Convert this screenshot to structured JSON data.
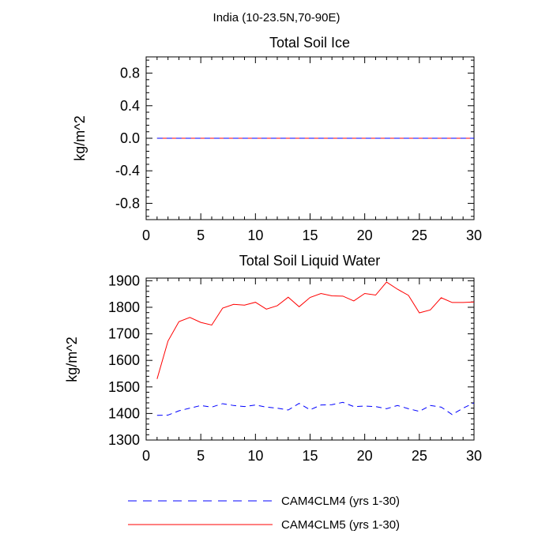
{
  "main_title": "India (10-23.5N,70-90E)",
  "colors": {
    "clm4": "#0000ff",
    "clm5": "#ff0000",
    "frame": "#000000"
  },
  "legend": [
    {
      "label": "CAM4CLM4 (yrs 1-30)",
      "color": "#0000ff",
      "dash": "dashed"
    },
    {
      "label": "CAM4CLM5 (yrs 1-30)",
      "color": "#ff0000",
      "dash": "solid"
    }
  ],
  "chart_data": [
    {
      "type": "line",
      "title": "Total Soil Ice",
      "xlabel": "",
      "ylabel": "kg/m^2",
      "xlim": [
        0,
        30
      ],
      "ylim": [
        -1,
        1
      ],
      "xticks": [
        0,
        5,
        10,
        15,
        20,
        25,
        30
      ],
      "yticks": [
        -0.8,
        -0.4,
        0.0,
        0.4,
        0.8
      ],
      "ytick_labels": [
        "-0.8",
        "-0.4",
        "0.0",
        "0.4",
        "0.8"
      ],
      "grid": false,
      "x": [
        1,
        2,
        3,
        4,
        5,
        6,
        7,
        8,
        9,
        10,
        11,
        12,
        13,
        14,
        15,
        16,
        17,
        18,
        19,
        20,
        21,
        22,
        23,
        24,
        25,
        26,
        27,
        28,
        29,
        30
      ],
      "series": [
        {
          "name": "CAM4CLM4 (yrs 1-30)",
          "color": "#0000ff",
          "dash": "dashed",
          "values": [
            0,
            0,
            0,
            0,
            0,
            0,
            0,
            0,
            0,
            0,
            0,
            0,
            0,
            0,
            0,
            0,
            0,
            0,
            0,
            0,
            0,
            0,
            0,
            0,
            0,
            0,
            0,
            0,
            0,
            0
          ]
        },
        {
          "name": "CAM4CLM5 (yrs 1-30)",
          "color": "#ff0000",
          "dash": "solid",
          "values": [
            0,
            0,
            0,
            0,
            0,
            0,
            0,
            0,
            0,
            0,
            0,
            0,
            0,
            0,
            0,
            0,
            0,
            0,
            0,
            0,
            0,
            0,
            0,
            0,
            0,
            0,
            0,
            0,
            0,
            0
          ]
        }
      ]
    },
    {
      "type": "line",
      "title": "Total Soil Liquid Water",
      "xlabel": "",
      "ylabel": "kg/m^2",
      "xlim": [
        0,
        30
      ],
      "ylim": [
        1300,
        1910
      ],
      "xticks": [
        0,
        5,
        10,
        15,
        20,
        25,
        30
      ],
      "yticks": [
        1300,
        1400,
        1500,
        1600,
        1700,
        1800,
        1900
      ],
      "ytick_labels": [
        "1300",
        "1400",
        "1500",
        "1600",
        "1700",
        "1800",
        "1900"
      ],
      "grid": false,
      "x": [
        1,
        2,
        3,
        4,
        5,
        6,
        7,
        8,
        9,
        10,
        11,
        12,
        13,
        14,
        15,
        16,
        17,
        18,
        19,
        20,
        21,
        22,
        23,
        24,
        25,
        26,
        27,
        28,
        29,
        30
      ],
      "series": [
        {
          "name": "CAM4CLM4 (yrs 1-30)",
          "color": "#0000ff",
          "dash": "dashed",
          "values": [
            1393,
            1394,
            1410,
            1420,
            1430,
            1424,
            1437,
            1430,
            1426,
            1432,
            1424,
            1420,
            1413,
            1438,
            1414,
            1432,
            1433,
            1442,
            1426,
            1428,
            1426,
            1418,
            1430,
            1418,
            1408,
            1430,
            1424,
            1396,
            1420,
            1440
          ]
        },
        {
          "name": "CAM4CLM5 (yrs 1-30)",
          "color": "#ff0000",
          "dash": "solid",
          "values": [
            1530,
            1673,
            1746,
            1762,
            1743,
            1733,
            1797,
            1811,
            1808,
            1819,
            1793,
            1806,
            1838,
            1802,
            1837,
            1852,
            1843,
            1842,
            1824,
            1852,
            1846,
            1895,
            1868,
            1845,
            1779,
            1790,
            1836,
            1818,
            1818,
            1820
          ]
        }
      ]
    }
  ]
}
